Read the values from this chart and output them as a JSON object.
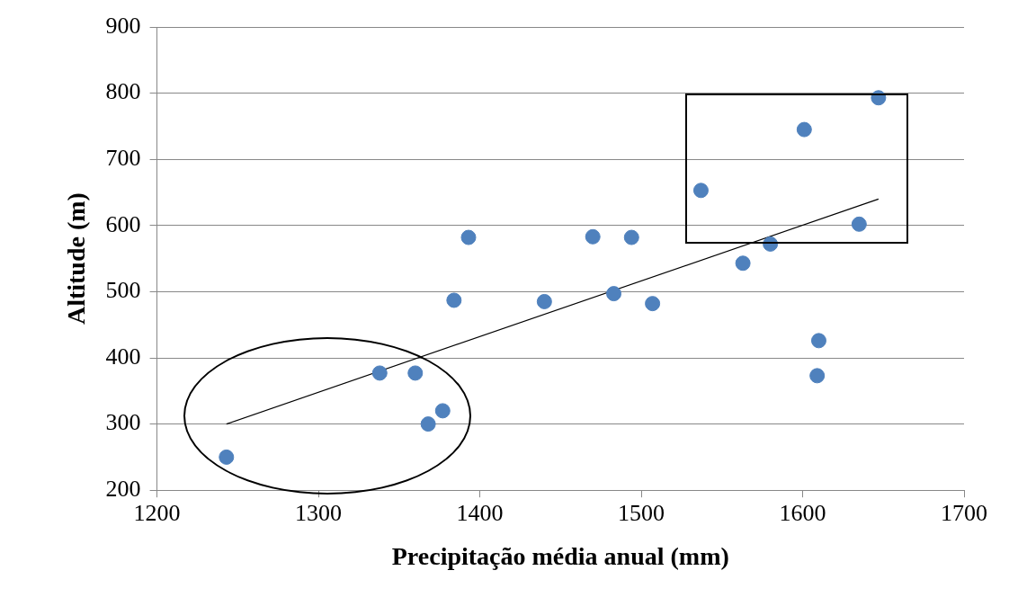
{
  "chart_data": {
    "type": "scatter",
    "xlabel": "Precipitação média anual (mm)",
    "ylabel": "Altitude (m)",
    "xlim": [
      1200,
      1700
    ],
    "xticks": [
      1200,
      1300,
      1400,
      1500,
      1600,
      1700
    ],
    "ylim": [
      200,
      900
    ],
    "yticks": [
      200,
      300,
      400,
      500,
      600,
      700,
      800,
      900
    ],
    "grid": "y",
    "legend": false,
    "marker": "circle",
    "series": [
      {
        "color": "#4f81bd",
        "x": [
          1243,
          1338,
          1360,
          1368,
          1377,
          1384,
          1393,
          1440,
          1470,
          1483,
          1494,
          1507,
          1537,
          1563,
          1580,
          1601,
          1610,
          1609,
          1635,
          1647
        ],
        "values": [
          250,
          377,
          377,
          300,
          320,
          487,
          582,
          485,
          583,
          497,
          582,
          482,
          653,
          543,
          572,
          745,
          426,
          373,
          602,
          793
        ]
      },
      {
        "type": "line",
        "color": "#000000",
        "marker": "none",
        "x": [
          1243,
          1647
        ],
        "values": [
          300,
          640
        ]
      }
    ]
  }
}
